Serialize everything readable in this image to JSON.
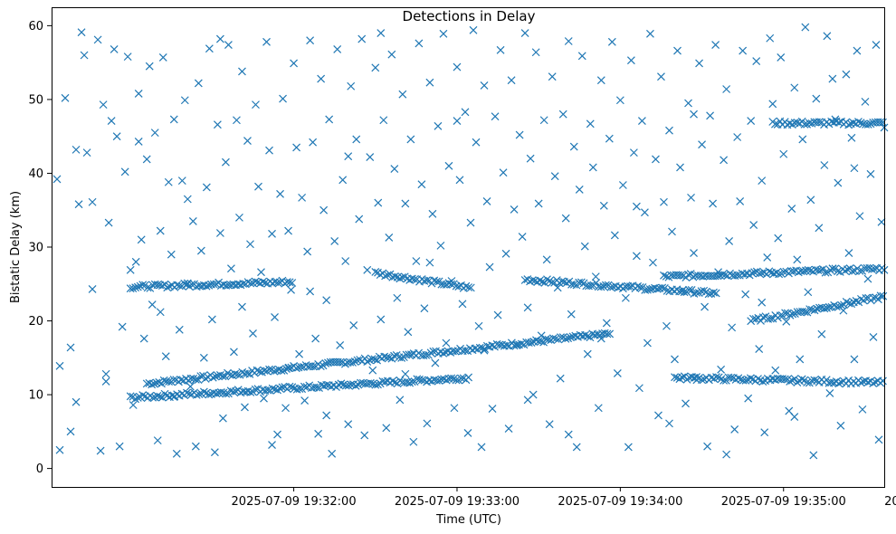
{
  "chart_data": {
    "type": "scatter",
    "title": "Detections in Delay",
    "xlabel": "Time (UTC)",
    "ylabel": "Bistatic Delay (km)",
    "marker": "x",
    "color": "#1f77b4",
    "xlim_seconds_after_19_31_00": [
      -29,
      277
    ],
    "ylim": [
      -2.5,
      62.5
    ],
    "x_ticks": [
      {
        "t": 60,
        "label": "2025-07-09 19:32:00"
      },
      {
        "t": 120,
        "label": "2025-07-09 19:33:00"
      },
      {
        "t": 180,
        "label": "2025-07-09 19:34:00"
      },
      {
        "t": 240,
        "label": "2025-07-09 19:35:00"
      },
      {
        "t": 300,
        "label": "2025-07-09 19:36:00"
      }
    ],
    "y_ticks": [
      0,
      10,
      20,
      30,
      40,
      50,
      60
    ],
    "series_note": "x values are seconds after 2025-07-09 19:31:00 UTC; y values in km",
    "tracks": [
      {
        "name": "rising track",
        "t_start": 6,
        "t_end": 177,
        "y_start": 11.5,
        "y_end": 18.3
      },
      {
        "name": "lower track",
        "t_start": 0,
        "t_end": 125,
        "y_start": 9.6,
        "y_end": 12.3
      },
      {
        "name": "mid track A",
        "t_start": 0,
        "t_end": 60,
        "y_start": 24.6,
        "y_end": 25.3
      },
      {
        "name": "mid track B",
        "t_start": 90,
        "t_end": 126,
        "y_start": 26.5,
        "y_end": 24.4
      },
      {
        "name": "mid track C",
        "t_start": 145,
        "t_end": 216,
        "y_start": 25.6,
        "y_end": 23.7
      },
      {
        "name": "mid track D",
        "t_start": 196,
        "t_end": 302,
        "y_start": 26.0,
        "y_end": 27.4
      },
      {
        "name": "far track",
        "t_start": 236,
        "t_end": 298,
        "y_start": 46.8,
        "y_end": 46.8
      },
      {
        "name": "crossing track",
        "t_start": 228,
        "t_end": 295,
        "y_start": 20.0,
        "y_end": 24.5
      },
      {
        "name": "late lower track",
        "t_start": 200,
        "t_end": 302,
        "y_start": 12.3,
        "y_end": 11.4
      }
    ],
    "points": [
      [
        -27,
        39.2
      ],
      [
        -26,
        2.5
      ],
      [
        -24,
        50.2
      ],
      [
        -22,
        16.4
      ],
      [
        -20,
        43.2
      ],
      [
        -19,
        35.8
      ],
      [
        -18,
        59.1
      ],
      [
        -17,
        56.0
      ],
      [
        -16,
        42.8
      ],
      [
        -14,
        36.1
      ],
      [
        -12,
        58.1
      ],
      [
        -11,
        2.4
      ],
      [
        -10,
        49.3
      ],
      [
        -9,
        12.8
      ],
      [
        -8,
        33.3
      ],
      [
        -7,
        47.1
      ],
      [
        -6,
        56.8
      ],
      [
        -5,
        45.0
      ],
      [
        -4,
        3.0
      ],
      [
        -3,
        19.2
      ],
      [
        -2,
        40.2
      ],
      [
        -1,
        55.8
      ],
      [
        0,
        26.9
      ],
      [
        1,
        8.6
      ],
      [
        2,
        28.0
      ],
      [
        3,
        50.8
      ],
      [
        4,
        31.0
      ],
      [
        5,
        17.6
      ],
      [
        6,
        41.9
      ],
      [
        7,
        54.5
      ],
      [
        8,
        22.2
      ],
      [
        9,
        45.5
      ],
      [
        10,
        3.8
      ],
      [
        11,
        32.2
      ],
      [
        12,
        55.7
      ],
      [
        13,
        15.2
      ],
      [
        14,
        38.8
      ],
      [
        15,
        29.0
      ],
      [
        16,
        47.3
      ],
      [
        17,
        2.0
      ],
      [
        18,
        18.8
      ],
      [
        19,
        39.0
      ],
      [
        20,
        49.9
      ],
      [
        21,
        25.1
      ],
      [
        22,
        11.1
      ],
      [
        23,
        33.5
      ],
      [
        24,
        3.0
      ],
      [
        25,
        52.2
      ],
      [
        26,
        29.5
      ],
      [
        27,
        15.0
      ],
      [
        28,
        38.1
      ],
      [
        29,
        56.9
      ],
      [
        30,
        20.2
      ],
      [
        31,
        2.2
      ],
      [
        32,
        46.6
      ],
      [
        33,
        31.9
      ],
      [
        34,
        6.8
      ],
      [
        35,
        41.5
      ],
      [
        36,
        57.4
      ],
      [
        37,
        27.1
      ],
      [
        38,
        15.8
      ],
      [
        39,
        47.2
      ],
      [
        40,
        34.0
      ],
      [
        41,
        21.9
      ],
      [
        42,
        8.3
      ],
      [
        43,
        44.4
      ],
      [
        44,
        30.4
      ],
      [
        45,
        18.3
      ],
      [
        46,
        49.3
      ],
      [
        47,
        38.2
      ],
      [
        48,
        26.6
      ],
      [
        49,
        9.5
      ],
      [
        50,
        57.8
      ],
      [
        51,
        43.1
      ],
      [
        52,
        31.8
      ],
      [
        53,
        20.5
      ],
      [
        54,
        4.6
      ],
      [
        55,
        37.2
      ],
      [
        56,
        50.1
      ],
      [
        57,
        8.2
      ],
      [
        58,
        32.2
      ],
      [
        59,
        24.2
      ],
      [
        60,
        54.9
      ],
      [
        61,
        43.5
      ],
      [
        62,
        15.5
      ],
      [
        63,
        36.7
      ],
      [
        64,
        9.2
      ],
      [
        65,
        29.4
      ],
      [
        66,
        58.0
      ],
      [
        67,
        44.2
      ],
      [
        68,
        17.6
      ],
      [
        69,
        4.7
      ],
      [
        70,
        52.8
      ],
      [
        71,
        35.0
      ],
      [
        72,
        22.8
      ],
      [
        73,
        47.3
      ],
      [
        74,
        2.0
      ],
      [
        75,
        30.8
      ],
      [
        76,
        56.8
      ],
      [
        77,
        16.7
      ],
      [
        78,
        39.1
      ],
      [
        79,
        28.1
      ],
      [
        80,
        6.0
      ],
      [
        81,
        51.8
      ],
      [
        82,
        19.4
      ],
      [
        83,
        44.6
      ],
      [
        84,
        33.8
      ],
      [
        85,
        58.2
      ],
      [
        86,
        4.5
      ],
      [
        87,
        26.9
      ],
      [
        88,
        42.2
      ],
      [
        89,
        13.3
      ],
      [
        90,
        54.3
      ],
      [
        91,
        36.0
      ],
      [
        92,
        20.2
      ],
      [
        93,
        47.2
      ],
      [
        94,
        5.5
      ],
      [
        95,
        31.3
      ],
      [
        96,
        56.1
      ],
      [
        97,
        40.6
      ],
      [
        98,
        23.1
      ],
      [
        99,
        9.3
      ],
      [
        100,
        50.7
      ],
      [
        101,
        35.9
      ],
      [
        102,
        18.5
      ],
      [
        103,
        44.6
      ],
      [
        104,
        3.6
      ],
      [
        105,
        28.1
      ],
      [
        106,
        57.6
      ],
      [
        107,
        38.5
      ],
      [
        108,
        21.7
      ],
      [
        109,
        6.1
      ],
      [
        110,
        52.3
      ],
      [
        111,
        34.5
      ],
      [
        112,
        14.3
      ],
      [
        113,
        46.4
      ],
      [
        114,
        30.2
      ],
      [
        115,
        58.9
      ],
      [
        116,
        17.0
      ],
      [
        117,
        41.0
      ],
      [
        118,
        25.4
      ],
      [
        119,
        8.2
      ],
      [
        120,
        54.4
      ],
      [
        121,
        39.1
      ],
      [
        122,
        22.3
      ],
      [
        123,
        48.3
      ],
      [
        124,
        4.8
      ],
      [
        125,
        33.3
      ],
      [
        126,
        59.4
      ],
      [
        127,
        44.2
      ],
      [
        128,
        19.3
      ],
      [
        129,
        2.9
      ],
      [
        130,
        51.9
      ],
      [
        131,
        36.2
      ],
      [
        132,
        27.3
      ],
      [
        133,
        8.1
      ],
      [
        134,
        47.7
      ],
      [
        135,
        20.8
      ],
      [
        136,
        56.7
      ],
      [
        137,
        40.1
      ],
      [
        138,
        29.1
      ],
      [
        139,
        5.4
      ],
      [
        140,
        52.6
      ],
      [
        141,
        35.1
      ],
      [
        142,
        16.8
      ],
      [
        143,
        45.2
      ],
      [
        144,
        31.4
      ],
      [
        145,
        59.0
      ],
      [
        146,
        21.8
      ],
      [
        147,
        42.0
      ],
      [
        148,
        10.0
      ],
      [
        149,
        56.4
      ],
      [
        150,
        35.9
      ],
      [
        151,
        18.0
      ],
      [
        152,
        47.2
      ],
      [
        153,
        28.3
      ],
      [
        154,
        6.0
      ],
      [
        155,
        53.1
      ],
      [
        156,
        39.6
      ],
      [
        157,
        24.5
      ],
      [
        158,
        12.2
      ],
      [
        159,
        48.0
      ],
      [
        160,
        33.9
      ],
      [
        161,
        57.9
      ],
      [
        162,
        20.9
      ],
      [
        163,
        43.6
      ],
      [
        164,
        2.9
      ],
      [
        165,
        37.8
      ],
      [
        166,
        55.9
      ],
      [
        167,
        30.1
      ],
      [
        168,
        15.5
      ],
      [
        169,
        46.7
      ],
      [
        170,
        40.8
      ],
      [
        171,
        26.0
      ],
      [
        172,
        8.2
      ],
      [
        173,
        52.6
      ],
      [
        174,
        35.6
      ],
      [
        175,
        19.7
      ],
      [
        176,
        44.7
      ],
      [
        177,
        57.8
      ],
      [
        178,
        31.6
      ],
      [
        179,
        12.9
      ],
      [
        180,
        49.9
      ],
      [
        181,
        38.4
      ],
      [
        182,
        23.1
      ],
      [
        183,
        2.9
      ],
      [
        184,
        55.3
      ],
      [
        185,
        42.8
      ],
      [
        186,
        28.8
      ],
      [
        187,
        10.9
      ],
      [
        188,
        47.1
      ],
      [
        189,
        34.7
      ],
      [
        190,
        17.0
      ],
      [
        191,
        58.9
      ],
      [
        192,
        27.9
      ],
      [
        193,
        41.9
      ],
      [
        194,
        7.2
      ],
      [
        195,
        53.1
      ],
      [
        196,
        36.1
      ],
      [
        197,
        19.3
      ],
      [
        198,
        45.8
      ],
      [
        199,
        32.1
      ],
      [
        200,
        14.8
      ],
      [
        201,
        56.6
      ],
      [
        202,
        40.8
      ],
      [
        203,
        24.2
      ],
      [
        204,
        8.8
      ],
      [
        205,
        49.5
      ],
      [
        206,
        36.7
      ],
      [
        207,
        29.2
      ],
      [
        208,
        12.4
      ],
      [
        209,
        54.9
      ],
      [
        210,
        43.9
      ],
      [
        211,
        21.9
      ],
      [
        212,
        3.0
      ],
      [
        213,
        47.8
      ],
      [
        214,
        35.9
      ],
      [
        215,
        57.4
      ],
      [
        216,
        26.6
      ],
      [
        217,
        13.4
      ],
      [
        218,
        41.8
      ],
      [
        219,
        51.4
      ],
      [
        220,
        30.8
      ],
      [
        221,
        19.1
      ],
      [
        222,
        5.3
      ],
      [
        223,
        44.9
      ],
      [
        224,
        36.2
      ],
      [
        225,
        56.6
      ],
      [
        226,
        23.6
      ],
      [
        227,
        9.5
      ],
      [
        228,
        47.1
      ],
      [
        229,
        33.0
      ],
      [
        230,
        55.2
      ],
      [
        231,
        16.2
      ],
      [
        232,
        39.0
      ],
      [
        233,
        4.9
      ],
      [
        234,
        28.6
      ],
      [
        235,
        58.3
      ],
      [
        236,
        49.4
      ],
      [
        237,
        13.3
      ],
      [
        238,
        31.2
      ],
      [
        239,
        55.7
      ],
      [
        240,
        42.6
      ],
      [
        241,
        19.9
      ],
      [
        242,
        7.8
      ],
      [
        243,
        35.2
      ],
      [
        244,
        51.6
      ],
      [
        245,
        28.3
      ],
      [
        246,
        14.8
      ],
      [
        247,
        44.6
      ],
      [
        248,
        59.8
      ],
      [
        249,
        23.9
      ],
      [
        250,
        36.4
      ],
      [
        251,
        1.8
      ],
      [
        252,
        50.1
      ],
      [
        253,
        32.6
      ],
      [
        254,
        18.2
      ],
      [
        255,
        41.1
      ],
      [
        256,
        58.6
      ],
      [
        257,
        10.2
      ],
      [
        258,
        27.1
      ],
      [
        259,
        47.3
      ],
      [
        260,
        38.7
      ],
      [
        261,
        5.8
      ],
      [
        262,
        21.4
      ],
      [
        263,
        53.4
      ],
      [
        264,
        29.2
      ],
      [
        265,
        44.8
      ],
      [
        266,
        14.8
      ],
      [
        267,
        56.6
      ],
      [
        268,
        34.2
      ],
      [
        269,
        8.0
      ],
      [
        270,
        49.7
      ],
      [
        271,
        25.7
      ],
      [
        272,
        39.9
      ],
      [
        273,
        17.8
      ],
      [
        274,
        57.4
      ],
      [
        275,
        3.9
      ],
      [
        276,
        33.4
      ],
      [
        277,
        46.2
      ],
      [
        278,
        11.4
      ],
      [
        279,
        52.0
      ],
      [
        280,
        30.0
      ],
      [
        281,
        20.6
      ],
      [
        282,
        59.7
      ],
      [
        283,
        37.2
      ],
      [
        284,
        6.7
      ],
      [
        285,
        43.9
      ],
      [
        286,
        15.0
      ],
      [
        287,
        55.9
      ],
      [
        288,
        28.8
      ],
      [
        289,
        48.8
      ],
      [
        290,
        35.9
      ],
      [
        291,
        2.9
      ],
      [
        292,
        22.6
      ],
      [
        293,
        45.0
      ],
      [
        294,
        58.4
      ],
      [
        295,
        13.0
      ],
      [
        296,
        40.0
      ],
      [
        297,
        32.9
      ],
      [
        298,
        51.2
      ],
      [
        299,
        9.7
      ],
      [
        300,
        24.9
      ],
      [
        301,
        37.3
      ],
      [
        302,
        59.4
      ],
      [
        -26,
        13.9
      ],
      [
        -22,
        5.0
      ],
      [
        -20,
        9.0
      ],
      [
        -14,
        24.3
      ],
      [
        -9,
        11.8
      ],
      [
        3,
        44.3
      ],
      [
        11,
        21.2
      ],
      [
        16,
        9.7
      ],
      [
        21,
        36.5
      ],
      [
        33,
        58.2
      ],
      [
        41,
        53.8
      ],
      [
        52,
        3.2
      ],
      [
        58,
        13.6
      ],
      [
        66,
        24.0
      ],
      [
        72,
        7.2
      ],
      [
        80,
        42.3
      ],
      [
        92,
        59.0
      ],
      [
        101,
        12.8
      ],
      [
        110,
        27.9
      ],
      [
        120,
        47.1
      ],
      [
        130,
        16.0
      ],
      [
        146,
        9.3
      ],
      [
        161,
        4.6
      ],
      [
        173,
        17.6
      ],
      [
        186,
        35.5
      ],
      [
        198,
        6.1
      ],
      [
        207,
        48.0
      ],
      [
        219,
        1.9
      ],
      [
        232,
        22.5
      ],
      [
        244,
        7.0
      ],
      [
        258,
        52.8
      ],
      [
        266,
        40.7
      ],
      [
        283,
        16.5
      ],
      [
        294,
        6.3
      ],
      [
        301,
        42.0
      ]
    ]
  }
}
